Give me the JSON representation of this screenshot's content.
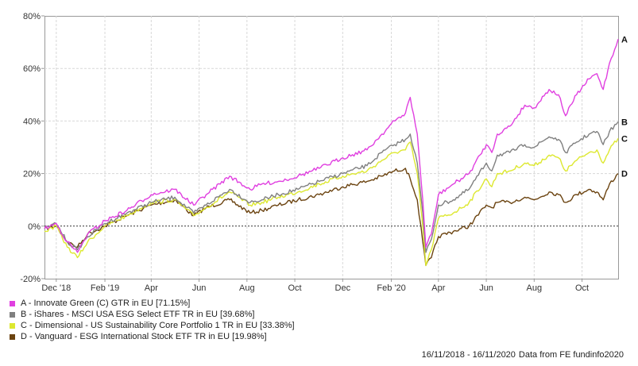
{
  "chart_data": {
    "type": "line",
    "x_tick_labels": [
      "Dec '18",
      "Feb '19",
      "Apr",
      "Jun",
      "Aug",
      "Oct",
      "Dec",
      "Feb '20",
      "Apr",
      "Jun",
      "Aug",
      "Oct"
    ],
    "y_tick_labels": [
      "80%",
      "60%",
      "40%",
      "20%",
      "0%",
      "-20%"
    ],
    "ylim": [
      -20,
      80
    ],
    "grid": true,
    "series": [
      {
        "name": "A - Innovate Green (C) GTR in EU [71.15%]",
        "end_label": "A",
        "color": "#e040e0",
        "x": [
          "2018-11-16",
          "2018-12-01",
          "2018-12-15",
          "2018-12-28",
          "2019-01-10",
          "2019-02-01",
          "2019-03-01",
          "2019-04-01",
          "2019-05-01",
          "2019-05-25",
          "2019-06-10",
          "2019-07-10",
          "2019-08-05",
          "2019-08-20",
          "2019-09-10",
          "2019-10-05",
          "2019-11-01",
          "2019-12-01",
          "2020-01-01",
          "2020-01-20",
          "2020-02-05",
          "2020-02-19",
          "2020-02-25",
          "2020-03-05",
          "2020-03-12",
          "2020-03-16",
          "2020-03-23",
          "2020-04-01",
          "2020-04-20",
          "2020-05-10",
          "2020-06-01",
          "2020-06-08",
          "2020-06-15",
          "2020-07-01",
          "2020-07-20",
          "2020-08-01",
          "2020-08-20",
          "2020-09-01",
          "2020-09-10",
          "2020-09-24",
          "2020-10-10",
          "2020-10-20",
          "2020-10-28",
          "2020-11-05",
          "2020-11-16"
        ],
        "y": [
          -1,
          1,
          -6,
          -10,
          -3,
          2,
          6,
          12,
          14,
          8,
          12,
          19,
          14,
          16,
          17,
          19,
          22,
          26,
          29,
          35,
          40,
          43,
          49,
          35,
          10,
          -8,
          -3,
          12,
          16,
          20,
          31,
          28,
          35,
          38,
          46,
          45,
          52,
          50,
          42,
          50,
          56,
          58,
          52,
          62,
          71.15
        ]
      },
      {
        "name": "B - iShares - MSCI USA ESG Select ETF TR in EU [39.68%]",
        "end_label": "B",
        "color": "#808080",
        "x": [
          "2018-11-16",
          "2018-12-01",
          "2018-12-15",
          "2018-12-28",
          "2019-01-10",
          "2019-02-01",
          "2019-03-01",
          "2019-04-01",
          "2019-05-01",
          "2019-05-25",
          "2019-06-10",
          "2019-07-10",
          "2019-08-05",
          "2019-08-20",
          "2019-09-10",
          "2019-10-05",
          "2019-11-01",
          "2019-12-01",
          "2020-01-01",
          "2020-01-20",
          "2020-02-05",
          "2020-02-19",
          "2020-02-25",
          "2020-03-05",
          "2020-03-12",
          "2020-03-16",
          "2020-03-23",
          "2020-04-01",
          "2020-04-20",
          "2020-05-10",
          "2020-06-01",
          "2020-06-08",
          "2020-06-15",
          "2020-07-01",
          "2020-07-20",
          "2020-08-01",
          "2020-08-20",
          "2020-09-01",
          "2020-09-10",
          "2020-09-24",
          "2020-10-10",
          "2020-10-20",
          "2020-10-28",
          "2020-11-05",
          "2020-11-16"
        ],
        "y": [
          -1,
          1,
          -6,
          -9,
          -4,
          1,
          5,
          9,
          11,
          5,
          8,
          14,
          9,
          10,
          12,
          14,
          17,
          20,
          23,
          28,
          31,
          33,
          35,
          24,
          5,
          -10,
          -5,
          8,
          10,
          14,
          24,
          21,
          27,
          28,
          31,
          30,
          34,
          33,
          28,
          32,
          35,
          36,
          31,
          36,
          39.68
        ]
      },
      {
        "name": "C - Dimensional - US Sustainability Core Portfolio 1 TR in EU [33.38%]",
        "end_label": "C",
        "color": "#dde830",
        "x": [
          "2018-11-16",
          "2018-12-01",
          "2018-12-15",
          "2018-12-28",
          "2019-01-10",
          "2019-02-01",
          "2019-03-01",
          "2019-04-01",
          "2019-05-01",
          "2019-05-25",
          "2019-06-10",
          "2019-07-10",
          "2019-08-05",
          "2019-08-20",
          "2019-09-10",
          "2019-10-05",
          "2019-11-01",
          "2019-12-01",
          "2020-01-01",
          "2020-01-20",
          "2020-02-05",
          "2020-02-19",
          "2020-02-25",
          "2020-03-05",
          "2020-03-12",
          "2020-03-16",
          "2020-03-23",
          "2020-04-01",
          "2020-04-20",
          "2020-05-10",
          "2020-06-01",
          "2020-06-08",
          "2020-06-15",
          "2020-07-01",
          "2020-07-20",
          "2020-08-01",
          "2020-08-20",
          "2020-09-01",
          "2020-09-10",
          "2020-09-24",
          "2020-10-10",
          "2020-10-20",
          "2020-10-28",
          "2020-11-05",
          "2020-11-16"
        ],
        "y": [
          -2,
          0,
          -8,
          -12,
          -6,
          0,
          4,
          9,
          10,
          4,
          7,
          13,
          8,
          9,
          11,
          13,
          16,
          19,
          21,
          25,
          28,
          29,
          32,
          20,
          0,
          -15,
          -9,
          3,
          5,
          9,
          18,
          15,
          20,
          21,
          24,
          23,
          27,
          26,
          21,
          25,
          28,
          29,
          24,
          29,
          33.38
        ]
      },
      {
        "name": "D - Vanguard - ESG International Stock ETF TR in EU [19.98%]",
        "end_label": "D",
        "color": "#6b4310",
        "x": [
          "2018-11-16",
          "2018-12-01",
          "2018-12-15",
          "2018-12-28",
          "2019-01-10",
          "2019-02-01",
          "2019-03-01",
          "2019-04-01",
          "2019-05-01",
          "2019-05-25",
          "2019-06-10",
          "2019-07-10",
          "2019-08-05",
          "2019-08-20",
          "2019-09-10",
          "2019-10-05",
          "2019-11-01",
          "2019-12-01",
          "2020-01-01",
          "2020-01-20",
          "2020-02-05",
          "2020-02-19",
          "2020-02-25",
          "2020-03-05",
          "2020-03-12",
          "2020-03-16",
          "2020-03-23",
          "2020-04-01",
          "2020-04-20",
          "2020-05-10",
          "2020-06-01",
          "2020-06-08",
          "2020-06-15",
          "2020-07-01",
          "2020-07-20",
          "2020-08-01",
          "2020-08-20",
          "2020-09-01",
          "2020-09-10",
          "2020-09-24",
          "2020-10-10",
          "2020-10-20",
          "2020-10-28",
          "2020-11-05",
          "2020-11-16"
        ],
        "y": [
          -1,
          0,
          -6,
          -8,
          -3,
          0,
          4,
          8,
          10,
          4,
          7,
          10,
          5,
          6,
          8,
          10,
          12,
          15,
          17,
          19,
          21,
          22,
          18,
          10,
          -6,
          -15,
          -12,
          -4,
          -2,
          0,
          8,
          7,
          9,
          9,
          11,
          10,
          13,
          12,
          9,
          12,
          14,
          13,
          10,
          16,
          19.98
        ]
      }
    ]
  },
  "footer": {
    "date_range": "16/11/2018 - 16/11/2020",
    "source": "Data from FE fundinfo2020"
  }
}
